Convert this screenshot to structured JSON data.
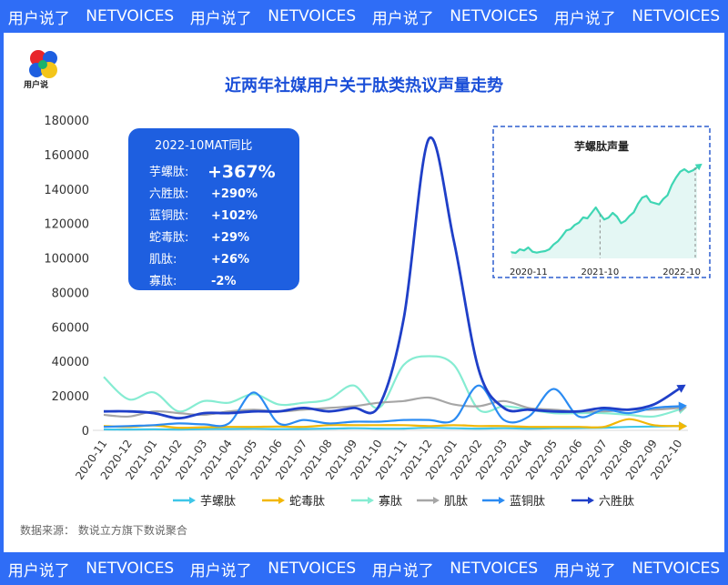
{
  "banner": {
    "items": [
      "用户说了",
      "NETVOICES",
      "用户说了",
      "NETVOICES",
      "用户说了",
      "NETVOICES",
      "用户说了",
      "NETVOICES"
    ]
  },
  "logo": {
    "text": "用户说"
  },
  "chart_data": {
    "type": "line",
    "title": "近两年社媒用户关于肽类热议声量走势",
    "xlabel": "",
    "ylabel": "",
    "ylim": [
      0,
      180000
    ],
    "yticks": [
      0,
      20000,
      40000,
      60000,
      80000,
      100000,
      120000,
      140000,
      160000,
      180000
    ],
    "categories": [
      "2020-11",
      "2020-12",
      "2021-01",
      "2021-02",
      "2021-03",
      "2021-04",
      "2021-05",
      "2021-06",
      "2021-07",
      "2021-08",
      "2021-09",
      "2021-10",
      "2021-11",
      "2021-12",
      "2022-01",
      "2022-02",
      "2022-03",
      "2022-04",
      "2022-05",
      "2022-06",
      "2022-07",
      "2022-08",
      "2022-09",
      "2022-10"
    ],
    "series": [
      {
        "name": "芋螺肽",
        "color": "#3ec6e8",
        "values": [
          500,
          500,
          600,
          500,
          700,
          800,
          900,
          700,
          800,
          1000,
          1200,
          1000,
          1000,
          1500,
          1200,
          1000,
          1200,
          1000,
          1200,
          1300,
          1500,
          2000,
          2200,
          2500
        ]
      },
      {
        "name": "蛇毒肽",
        "color": "#f2b705",
        "values": [
          2500,
          2000,
          2800,
          1500,
          1800,
          2000,
          2000,
          2200,
          2000,
          3000,
          3000,
          3000,
          3000,
          2500,
          3000,
          2500,
          2500,
          2000,
          2000,
          2000,
          2000,
          6500,
          3000,
          2500
        ]
      },
      {
        "name": "寡肽",
        "color": "#86ecd2",
        "values": [
          31000,
          18000,
          22000,
          11000,
          17000,
          16000,
          21000,
          15000,
          16000,
          18000,
          26000,
          13000,
          38000,
          43000,
          38000,
          12000,
          14000,
          12000,
          10000,
          10000,
          10000,
          9000,
          8000,
          12000
        ]
      },
      {
        "name": "肌肽",
        "color": "#a6a6a6",
        "values": [
          9000,
          8000,
          11000,
          10000,
          9000,
          11000,
          12000,
          11000,
          12000,
          13000,
          14000,
          16000,
          17000,
          19000,
          15000,
          14000,
          17000,
          13000,
          12000,
          11000,
          11000,
          12000,
          12000,
          13000
        ]
      },
      {
        "name": "蓝铜肽",
        "color": "#2b8bf2",
        "values": [
          2000,
          2500,
          3000,
          4000,
          3500,
          4000,
          22000,
          4000,
          6000,
          4000,
          5000,
          5000,
          6000,
          6000,
          6000,
          26000,
          6000,
          8000,
          24000,
          8000,
          12000,
          10000,
          13000,
          14000
        ]
      },
      {
        "name": "六胜肽",
        "color": "#1f3fc8",
        "values": [
          11000,
          11000,
          10000,
          7000,
          10000,
          10000,
          11000,
          11000,
          13000,
          11000,
          13000,
          14000,
          65000,
          169000,
          110000,
          35000,
          13000,
          12000,
          11000,
          11000,
          13000,
          12000,
          15000,
          24000
        ]
      }
    ],
    "callout": {
      "title": "2022-10MAT同比",
      "items": [
        {
          "label": "芋螺肽:",
          "value": "+367%"
        },
        {
          "label": "六胜肽:",
          "value": "+290%"
        },
        {
          "label": "蓝铜肽:",
          "value": "+102%"
        },
        {
          "label": "蛇毒肽:",
          "value": "+29%"
        },
        {
          "label": "肌肽:",
          "value": "+26%"
        },
        {
          "label": "寡肽:",
          "value": "-2%"
        }
      ]
    },
    "inset": {
      "title": "芋螺肽声量",
      "x_labels": [
        "2020-11",
        "2021-10",
        "2022-10"
      ],
      "values": [
        20,
        18,
        30,
        26,
        36,
        22,
        19,
        22,
        24,
        30,
        46,
        56,
        73,
        92,
        96,
        110,
        118,
        135,
        132,
        150,
        168,
        146,
        128,
        134,
        150,
        138,
        116,
        124,
        140,
        152,
        180,
        200,
        206,
        186,
        182,
        178,
        196,
        208,
        242,
        266,
        286,
        294,
        284,
        290,
        300
      ]
    },
    "legend_position": "bottom"
  },
  "footer": {
    "source": "数据来源：  数说立方旗下数说聚合"
  }
}
